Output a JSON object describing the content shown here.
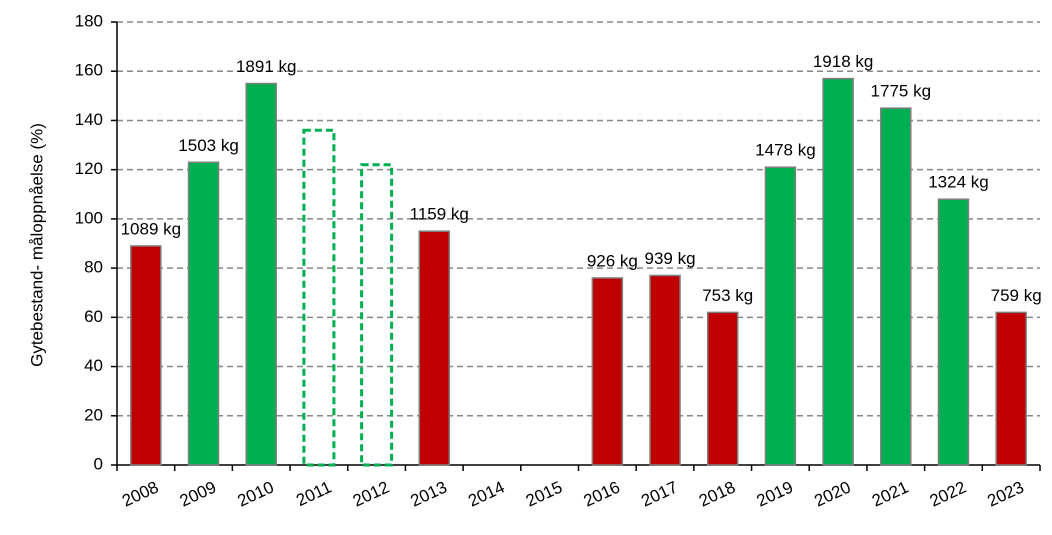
{
  "chart_data": {
    "type": "bar",
    "y_label": "Gytebestand- måloppnåelse (%)",
    "categories": [
      "2008",
      "2009",
      "2010",
      "2011",
      "2012",
      "2013",
      "2014",
      "2015",
      "2016",
      "2017",
      "2018",
      "2019",
      "2020",
      "2021",
      "2022",
      "2023"
    ],
    "values": [
      89,
      123,
      155,
      136,
      122,
      95,
      null,
      null,
      76,
      77,
      62,
      121,
      157,
      145,
      108,
      62
    ],
    "colors": [
      "#c00000",
      "#00b050",
      "#00b050",
      "#00b050",
      "#00b050",
      "#c00000",
      null,
      null,
      "#c00000",
      "#c00000",
      "#c00000",
      "#00b050",
      "#00b050",
      "#00b050",
      "#00b050",
      "#c00000"
    ],
    "styles": [
      "solid",
      "solid",
      "solid",
      "dashed",
      "dashed",
      "solid",
      null,
      null,
      "solid",
      "solid",
      "solid",
      "solid",
      "solid",
      "solid",
      "solid",
      "solid"
    ],
    "annotations": [
      "1089 kg",
      "1503 kg",
      "1891 kg",
      null,
      null,
      "1159 kg",
      null,
      null,
      "926 kg",
      "939 kg",
      "753 kg",
      "1478 kg",
      "1918 kg",
      "1775 kg",
      "1324 kg",
      "759 kg"
    ],
    "ylim": [
      0,
      180
    ],
    "yticks": [
      0,
      20,
      40,
      60,
      80,
      100,
      120,
      140,
      160,
      180
    ],
    "grid": true
  }
}
